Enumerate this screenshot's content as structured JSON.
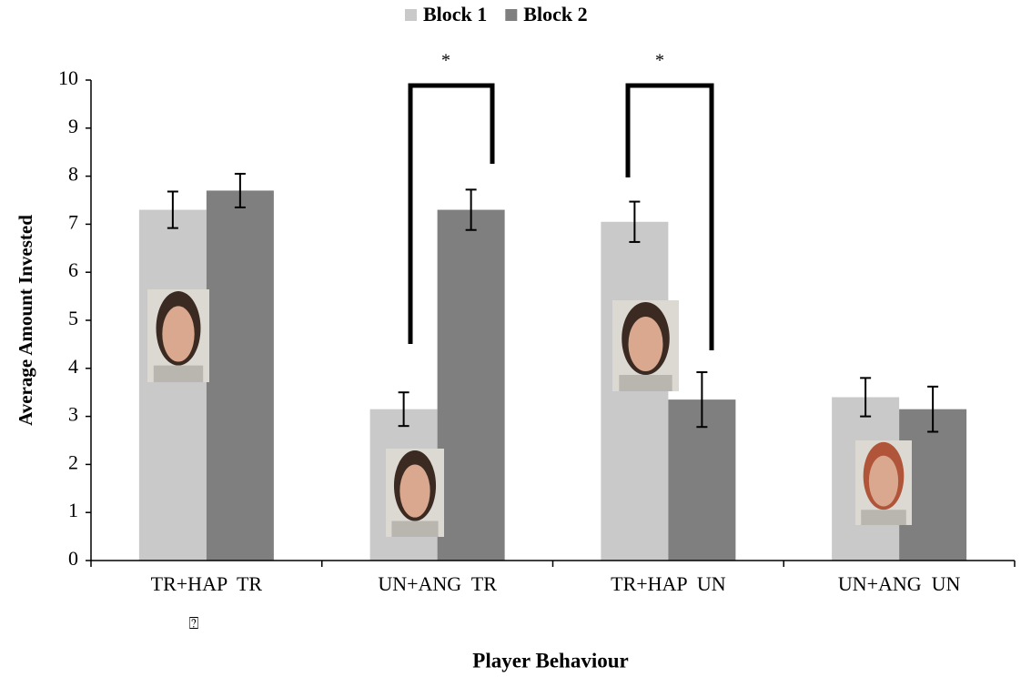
{
  "chart_data": {
    "type": "bar",
    "x_label": "Player Behaviour",
    "y_label": "Average Amount Invested",
    "categories": [
      "TR+HAP  TR",
      "UN+ANG  TR",
      "TR+HAP  UN",
      "UN+ANG  UN"
    ],
    "series": [
      {
        "name": "Block 1",
        "color": "#c9c9c9",
        "values": [
          7.3,
          3.15,
          7.05,
          3.4
        ],
        "errors": [
          0.38,
          0.35,
          0.42,
          0.4
        ]
      },
      {
        "name": "Block 2",
        "color": "#7f7f7f",
        "values": [
          7.7,
          7.3,
          3.35,
          3.15
        ],
        "errors": [
          0.35,
          0.42,
          0.57,
          0.47
        ]
      }
    ],
    "ylim": [
      0,
      10
    ],
    "yticks": [
      0,
      1,
      2,
      3,
      4,
      5,
      6,
      7,
      8,
      9,
      10
    ],
    "annotations": [
      "*",
      "*",
      "⍰"
    ],
    "legend": "top"
  }
}
